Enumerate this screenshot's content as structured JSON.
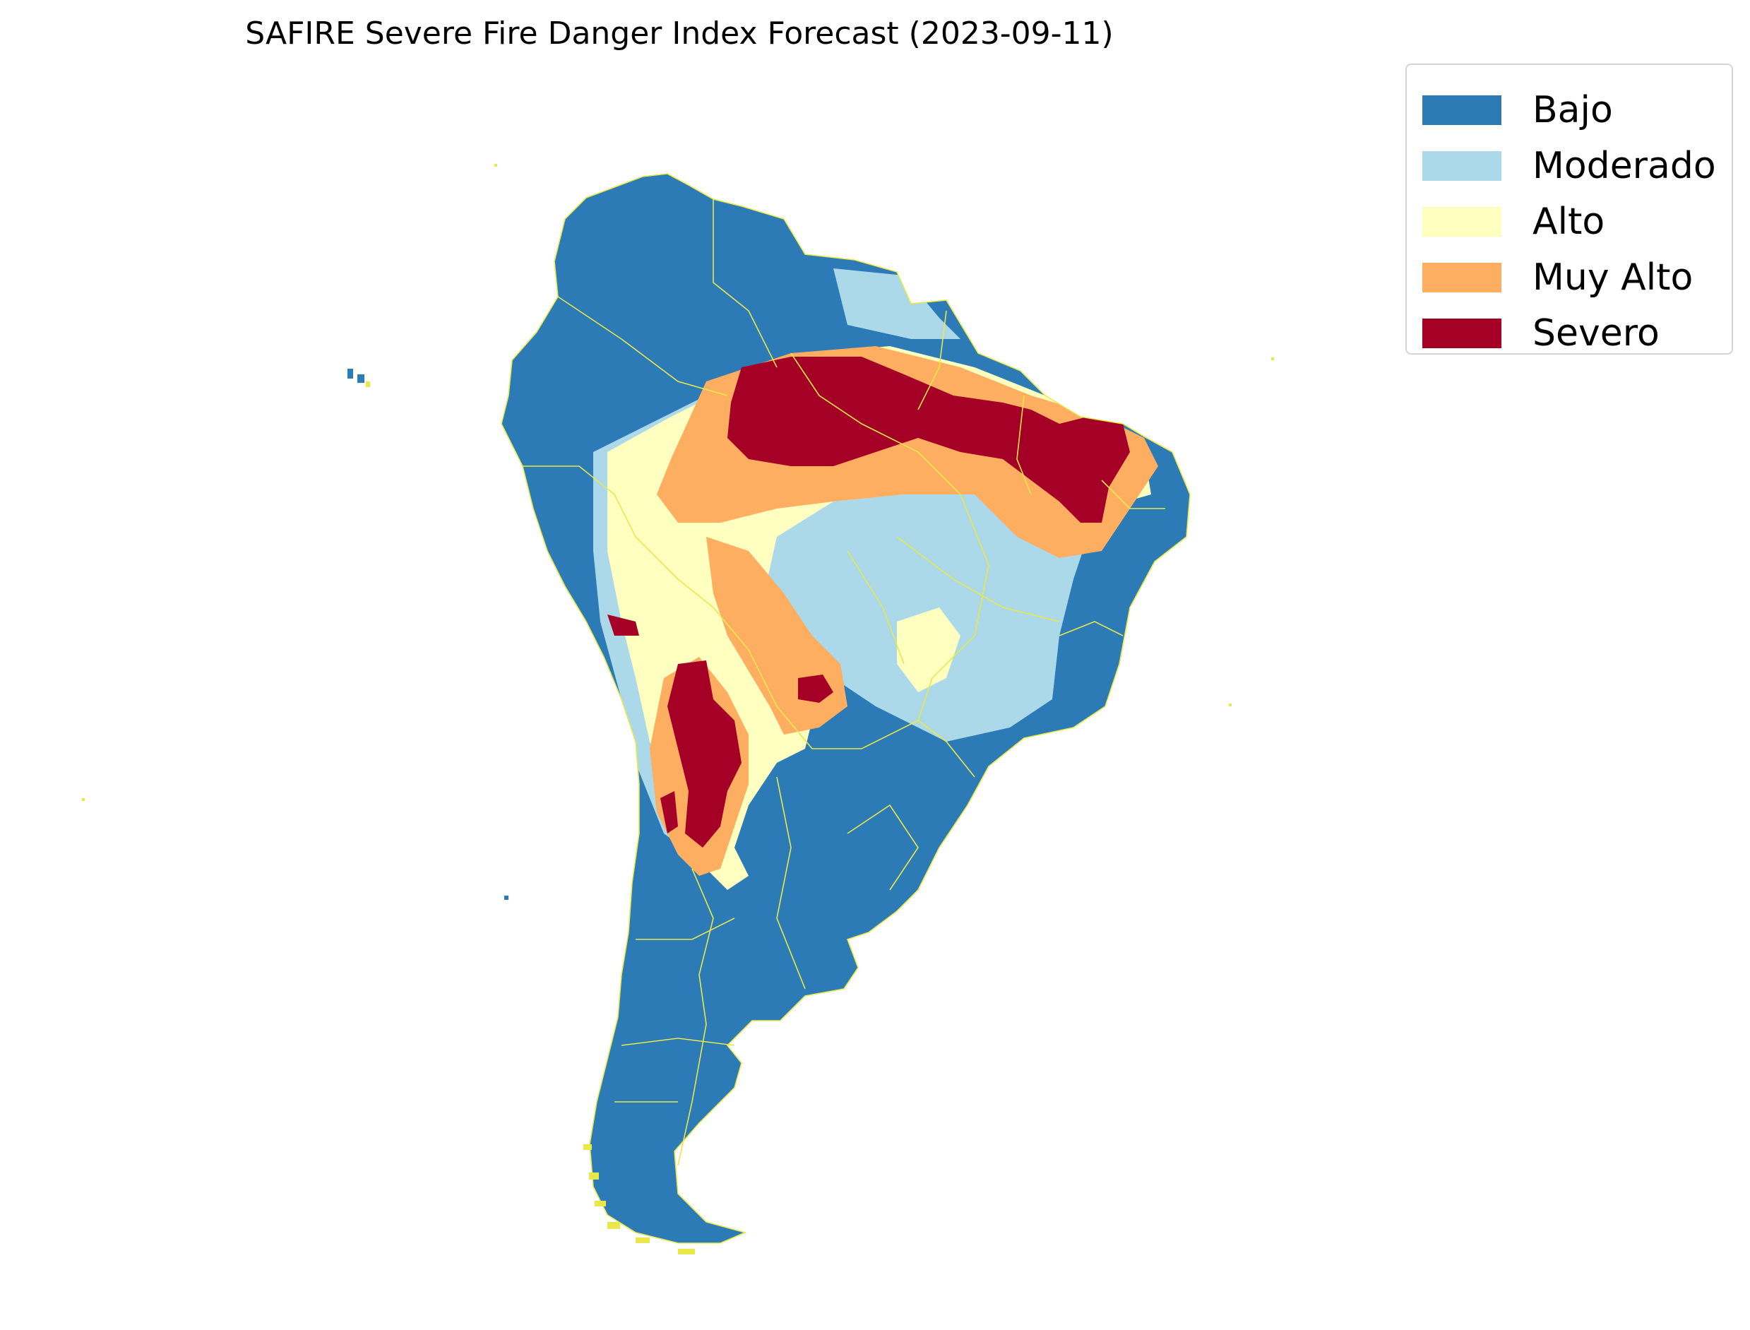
{
  "title": "SAFIRE Severe Fire Danger Index Forecast (2023-09-11)",
  "legend": {
    "placement": "upper-right, outside map",
    "items": [
      {
        "label": "Bajo",
        "color": "#2c7bb6"
      },
      {
        "label": "Moderado",
        "color": "#abd9e9"
      },
      {
        "label": "Alto",
        "color": "#ffffbf"
      },
      {
        "label": "Muy Alto",
        "color": "#fdae61"
      },
      {
        "label": "Severo",
        "color": "#a50026"
      }
    ]
  },
  "map": {
    "region": "South America",
    "boundary_color": "#e8e84a",
    "axes_visible": false
  }
}
